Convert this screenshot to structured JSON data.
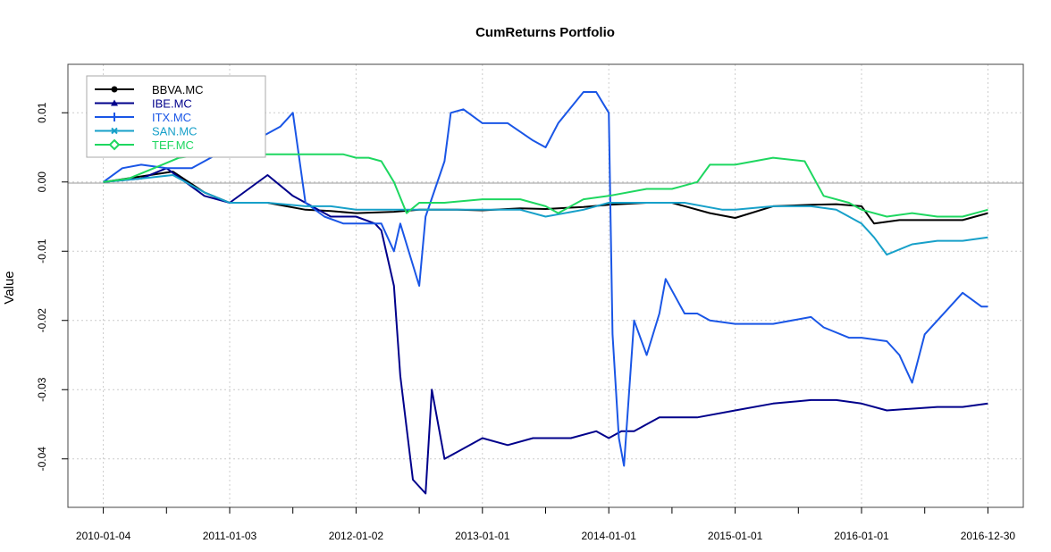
{
  "chart_data": {
    "type": "line",
    "title": "CumReturns Portfolio",
    "xlabel": "",
    "ylabel": "Value",
    "x_ticks": [
      "2010-01-04",
      "2011-01-03",
      "2012-01-02",
      "2013-01-01",
      "2014-01-01",
      "2015-01-01",
      "2016-01-01",
      "2016-12-30"
    ],
    "y_ticks": [
      "-0.04",
      "-0.03",
      "-0.02",
      "-0.01",
      "0.00",
      "0.01"
    ],
    "ylim": [
      -0.047,
      0.017
    ],
    "xlim": [
      2009.72,
      2017.28
    ],
    "grid": true,
    "legend_position": "top-left",
    "series": [
      {
        "name": "BBVA.MC",
        "color": "#000000",
        "marker": "circle",
        "x": [
          2010.0,
          2010.3,
          2010.55,
          2010.8,
          2011.0,
          2011.3,
          2011.6,
          2011.8,
          2012.0,
          2012.3,
          2012.5,
          2012.8,
          2013.0,
          2013.3,
          2013.5,
          2013.8,
          2014.0,
          2014.3,
          2014.5,
          2014.8,
          2015.0,
          2015.3,
          2015.6,
          2015.8,
          2016.0,
          2016.1,
          2016.3,
          2016.6,
          2016.8,
          2017.0
        ],
        "y": [
          0.0,
          0.0008,
          0.0015,
          -0.0015,
          -0.003,
          -0.003,
          -0.004,
          -0.0042,
          -0.0045,
          -0.0043,
          -0.004,
          -0.004,
          -0.0041,
          -0.0038,
          -0.0039,
          -0.0036,
          -0.0033,
          -0.003,
          -0.003,
          -0.0045,
          -0.0052,
          -0.0035,
          -0.0033,
          -0.0032,
          -0.0035,
          -0.006,
          -0.0055,
          -0.0055,
          -0.0055,
          -0.0045
        ]
      },
      {
        "name": "IBE.MC",
        "color": "#00008B",
        "marker": "triangle",
        "x": [
          2010.0,
          2010.3,
          2010.5,
          2010.8,
          2011.0,
          2011.3,
          2011.5,
          2011.8,
          2012.0,
          2012.15,
          2012.2,
          2012.3,
          2012.35,
          2012.45,
          2012.55,
          2012.6,
          2012.7,
          2013.0,
          2013.2,
          2013.4,
          2013.7,
          2013.9,
          2014.0,
          2014.1,
          2014.2,
          2014.4,
          2014.7,
          2015.0,
          2015.3,
          2015.6,
          2015.8,
          2016.0,
          2016.2,
          2016.6,
          2016.8,
          2017.0
        ],
        "y": [
          0.0,
          0.0005,
          0.002,
          -0.002,
          -0.003,
          0.001,
          -0.002,
          -0.005,
          -0.005,
          -0.006,
          -0.007,
          -0.015,
          -0.028,
          -0.043,
          -0.045,
          -0.03,
          -0.04,
          -0.037,
          -0.038,
          -0.037,
          -0.037,
          -0.036,
          -0.037,
          -0.036,
          -0.036,
          -0.034,
          -0.034,
          -0.033,
          -0.032,
          -0.0315,
          -0.0315,
          -0.032,
          -0.033,
          -0.0325,
          -0.0325,
          -0.032
        ]
      },
      {
        "name": "ITX.MC",
        "color": "#1A56E6",
        "marker": "plus",
        "x": [
          2010.0,
          2010.15,
          2010.3,
          2010.5,
          2010.7,
          2010.9,
          2011.0,
          2011.2,
          2011.4,
          2011.5,
          2011.6,
          2011.75,
          2011.9,
          2012.0,
          2012.2,
          2012.3,
          2012.35,
          2012.5,
          2012.55,
          2012.7,
          2012.75,
          2012.85,
          2013.0,
          2013.2,
          2013.4,
          2013.5,
          2013.6,
          2013.8,
          2013.9,
          2014.0,
          2014.03,
          2014.08,
          2014.12,
          2014.2,
          2014.3,
          2014.4,
          2014.45,
          2014.6,
          2014.7,
          2014.8,
          2015.0,
          2015.3,
          2015.6,
          2015.7,
          2015.9,
          2016.0,
          2016.2,
          2016.3,
          2016.4,
          2016.5,
          2016.7,
          2016.8,
          2016.95,
          2017.0
        ],
        "y": [
          0.0,
          0.002,
          0.0025,
          0.002,
          0.002,
          0.004,
          0.005,
          0.006,
          0.008,
          0.01,
          -0.003,
          -0.005,
          -0.006,
          -0.006,
          -0.006,
          -0.01,
          -0.006,
          -0.015,
          -0.005,
          0.003,
          0.01,
          0.0105,
          0.0085,
          0.0085,
          0.006,
          0.005,
          0.0085,
          0.013,
          0.013,
          0.01,
          -0.022,
          -0.037,
          -0.041,
          -0.02,
          -0.025,
          -0.019,
          -0.014,
          -0.019,
          -0.019,
          -0.02,
          -0.0205,
          -0.0205,
          -0.0195,
          -0.021,
          -0.0225,
          -0.0225,
          -0.023,
          -0.025,
          -0.029,
          -0.022,
          -0.018,
          -0.016,
          -0.018,
          -0.018
        ]
      },
      {
        "name": "SAN.MC",
        "color": "#17A0C9",
        "marker": "cross",
        "x": [
          2010.0,
          2010.3,
          2010.55,
          2010.8,
          2011.0,
          2011.3,
          2011.6,
          2011.8,
          2012.0,
          2012.3,
          2012.5,
          2012.8,
          2013.0,
          2013.3,
          2013.5,
          2013.8,
          2014.0,
          2014.3,
          2014.6,
          2014.9,
          2015.0,
          2015.3,
          2015.6,
          2015.8,
          2016.0,
          2016.1,
          2016.2,
          2016.4,
          2016.6,
          2016.8,
          2017.0
        ],
        "y": [
          0.0,
          0.0005,
          0.001,
          -0.0015,
          -0.003,
          -0.003,
          -0.0035,
          -0.0035,
          -0.004,
          -0.004,
          -0.004,
          -0.004,
          -0.004,
          -0.004,
          -0.005,
          -0.004,
          -0.003,
          -0.003,
          -0.003,
          -0.004,
          -0.004,
          -0.0035,
          -0.0035,
          -0.004,
          -0.006,
          -0.008,
          -0.0105,
          -0.009,
          -0.0085,
          -0.0085,
          -0.008
        ]
      },
      {
        "name": "TEF.MC",
        "color": "#1ED760",
        "marker": "diamond",
        "x": [
          2010.0,
          2010.2,
          2010.4,
          2010.6,
          2010.8,
          2011.0,
          2011.3,
          2011.6,
          2011.9,
          2012.0,
          2012.1,
          2012.2,
          2012.3,
          2012.4,
          2012.5,
          2012.7,
          2013.0,
          2013.3,
          2013.5,
          2013.6,
          2013.8,
          2014.0,
          2014.3,
          2014.5,
          2014.7,
          2014.8,
          2015.0,
          2015.3,
          2015.55,
          2015.7,
          2015.9,
          2016.0,
          2016.2,
          2016.4,
          2016.6,
          2016.8,
          2017.0
        ],
        "y": [
          0.0,
          0.0005,
          0.002,
          0.0035,
          0.004,
          0.004,
          0.004,
          0.004,
          0.004,
          0.0035,
          0.0035,
          0.003,
          0.0,
          -0.0045,
          -0.003,
          -0.003,
          -0.0025,
          -0.0025,
          -0.0035,
          -0.0045,
          -0.0025,
          -0.002,
          -0.001,
          -0.001,
          0.0,
          0.0025,
          0.0025,
          0.0035,
          0.003,
          -0.002,
          -0.003,
          -0.004,
          -0.005,
          -0.0045,
          -0.005,
          -0.005,
          -0.004
        ]
      }
    ]
  }
}
